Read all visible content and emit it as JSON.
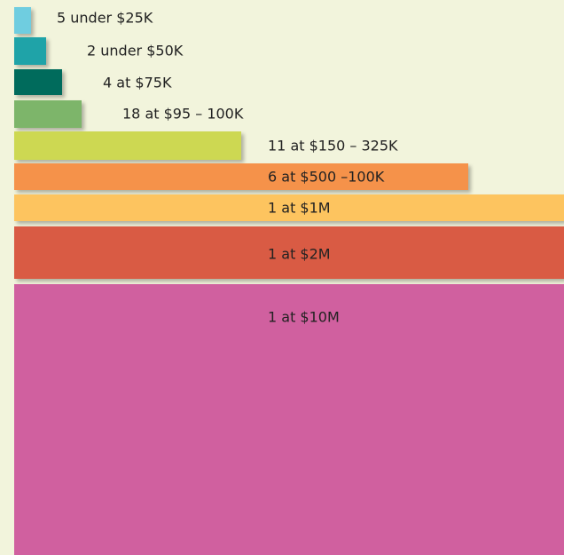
{
  "items": [
    {
      "label": "5 under $25K"
    },
    {
      "label": "2 under $50K"
    },
    {
      "label": "4 at $75K"
    },
    {
      "label": "18 at $95 – 100K"
    },
    {
      "label": "11 at $150 – 325K"
    },
    {
      "label": "6 at $500 –100K"
    },
    {
      "label": "1 at $1M"
    },
    {
      "label": "1 at $2M"
    },
    {
      "label": "1 at $10M"
    }
  ]
}
